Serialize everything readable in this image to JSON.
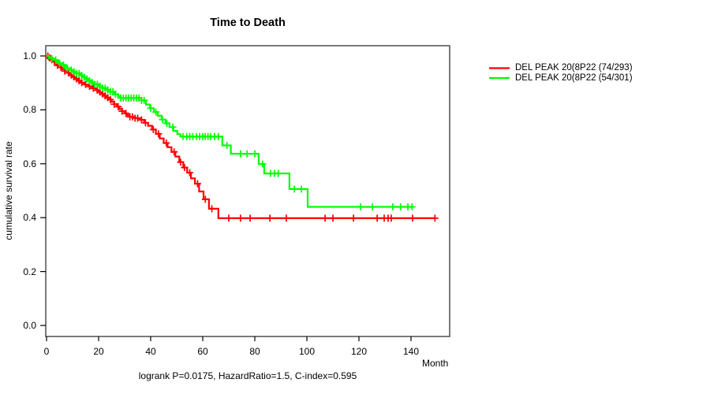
{
  "title": "Time to Death",
  "axes": {
    "x": {
      "label": "Month",
      "tick_labels": [
        "0",
        "20",
        "40",
        "60",
        "80",
        "100",
        "120",
        "140"
      ],
      "tick_values": [
        0,
        20,
        40,
        60,
        80,
        100,
        120,
        140
      ],
      "range": [
        0,
        155
      ]
    },
    "y": {
      "label": "cumulative survival rate",
      "tick_labels": [
        "0.0",
        "0.2",
        "0.4",
        "0.6",
        "0.8",
        "1.0"
      ],
      "tick_values": [
        0,
        0.2,
        0.4,
        0.6,
        0.8,
        1.0
      ],
      "range": [
        0,
        1.0
      ]
    }
  },
  "legend": {
    "items": [
      {
        "label": "DEL PEAK 20(8P22 (74/293)",
        "color": "#ff0000"
      },
      {
        "label": "DEL PEAK 20(8P22 (54/301)",
        "color": "#00ff00"
      }
    ]
  },
  "footer": "logrank P=0.0175, HazardRatio=1.5, C-index=0.595",
  "colors": {
    "series1": "#ff0000",
    "series2": "#00ff00",
    "box": "#595959",
    "tick": "#000000"
  },
  "chart_data": {
    "type": "line",
    "subtype": "kaplan-meier-step",
    "title": "Time to Death",
    "xlabel": "Month",
    "ylabel": "cumulative survival rate",
    "xlim": [
      0,
      155
    ],
    "ylim": [
      0,
      1.0
    ],
    "grid": false,
    "legend_position": "top-right-outside",
    "annotations": [
      "logrank P=0.0175, HazardRatio=1.5, C-index=0.595"
    ],
    "series": [
      {
        "name": "DEL PEAK 20(8P22 (74/293)",
        "events_ratio": "74/293",
        "color": "#ff0000",
        "end_month": 149.4,
        "steps": [
          [
            0,
            1.0
          ],
          [
            0.8,
            0.993
          ],
          [
            1.6,
            0.986
          ],
          [
            2.4,
            0.979
          ],
          [
            3.2,
            0.972
          ],
          [
            4,
            0.965
          ],
          [
            5,
            0.958
          ],
          [
            6,
            0.951
          ],
          [
            7,
            0.944
          ],
          [
            8,
            0.937
          ],
          [
            9,
            0.929
          ],
          [
            10,
            0.922
          ],
          [
            11,
            0.915
          ],
          [
            12,
            0.908
          ],
          [
            13,
            0.901
          ],
          [
            14.5,
            0.894
          ],
          [
            16,
            0.887
          ],
          [
            17.5,
            0.88
          ],
          [
            19,
            0.873
          ],
          [
            20,
            0.866
          ],
          [
            21,
            0.859
          ],
          [
            22,
            0.852
          ],
          [
            23,
            0.845
          ],
          [
            24,
            0.838
          ],
          [
            25,
            0.83
          ],
          [
            26,
            0.821
          ],
          [
            27,
            0.812
          ],
          [
            28,
            0.803
          ],
          [
            29,
            0.795
          ],
          [
            30,
            0.787
          ],
          [
            31,
            0.78
          ],
          [
            32,
            0.774
          ],
          [
            34,
            0.769
          ],
          [
            36,
            0.763
          ],
          [
            37.5,
            0.752
          ],
          [
            39,
            0.741
          ],
          [
            40.5,
            0.727
          ],
          [
            42,
            0.711
          ],
          [
            43.5,
            0.694
          ],
          [
            45,
            0.677
          ],
          [
            46.5,
            0.661
          ],
          [
            48,
            0.644
          ],
          [
            49.5,
            0.627
          ],
          [
            51,
            0.606
          ],
          [
            52.5,
            0.586
          ],
          [
            54,
            0.567
          ],
          [
            55.5,
            0.546
          ],
          [
            57,
            0.526
          ],
          [
            58.6,
            0.497
          ],
          [
            60.3,
            0.468
          ],
          [
            62.4,
            0.433
          ],
          [
            66,
            0.398
          ]
        ],
        "censor_months": [
          0.5,
          1.2,
          2,
          3,
          4.2,
          5.5,
          7,
          8.5,
          9.5,
          10.5,
          11.5,
          12.5,
          13.5,
          15,
          16.5,
          18,
          19.5,
          20.5,
          21.5,
          22.5,
          23.5,
          24.5,
          26,
          27.5,
          29,
          30.5,
          32,
          33,
          34,
          35,
          36.5,
          38,
          41,
          43,
          46,
          49,
          51.5,
          53,
          55,
          58,
          61,
          63.5,
          70,
          74.5,
          78.2,
          85.8,
          92.1,
          107,
          110,
          117.9,
          127,
          129.7,
          131.2,
          132.4,
          140.6,
          149.2
        ]
      },
      {
        "name": "DEL PEAK 20(8P22 (54/301)",
        "events_ratio": "54/301",
        "color": "#00ff00",
        "end_month": 140.6,
        "steps": [
          [
            0,
            1.0
          ],
          [
            1,
            0.995
          ],
          [
            2,
            0.99
          ],
          [
            3,
            0.985
          ],
          [
            4,
            0.979
          ],
          [
            5,
            0.973
          ],
          [
            6,
            0.967
          ],
          [
            7,
            0.961
          ],
          [
            8,
            0.954
          ],
          [
            9,
            0.948
          ],
          [
            10,
            0.941
          ],
          [
            11.5,
            0.935
          ],
          [
            13,
            0.928
          ],
          [
            14,
            0.921
          ],
          [
            15,
            0.915
          ],
          [
            16,
            0.908
          ],
          [
            17,
            0.902
          ],
          [
            18.5,
            0.895
          ],
          [
            20,
            0.888
          ],
          [
            21.5,
            0.881
          ],
          [
            23,
            0.874
          ],
          [
            24.5,
            0.867
          ],
          [
            26,
            0.858
          ],
          [
            27.5,
            0.85
          ],
          [
            28.5,
            0.844
          ],
          [
            36.5,
            0.835
          ],
          [
            38.2,
            0.82
          ],
          [
            39.7,
            0.806
          ],
          [
            41.2,
            0.792
          ],
          [
            42.7,
            0.778
          ],
          [
            44.2,
            0.764
          ],
          [
            45.7,
            0.75
          ],
          [
            47.2,
            0.736
          ],
          [
            48.7,
            0.722
          ],
          [
            50.2,
            0.71
          ],
          [
            51.4,
            0.701
          ],
          [
            67.5,
            0.668
          ],
          [
            70.8,
            0.637
          ],
          [
            81.5,
            0.599
          ],
          [
            83.6,
            0.564
          ],
          [
            93.3,
            0.506
          ],
          [
            100.3,
            0.44
          ]
        ],
        "censor_months": [
          2,
          3.5,
          5,
          6.5,
          8,
          9.5,
          10.5,
          11.5,
          12.5,
          13.5,
          14.5,
          15.5,
          16.5,
          17.5,
          18.5,
          19.5,
          20.5,
          21.5,
          22.5,
          23.5,
          24.5,
          25.5,
          26.5,
          28.5,
          29.5,
          30.5,
          31.5,
          32.5,
          33.5,
          34.5,
          35.5,
          36.5,
          37.5,
          40,
          42,
          44.5,
          46.2,
          48.5,
          52.4,
          53.9,
          55,
          56.2,
          57.6,
          58.8,
          60,
          60.9,
          62,
          63,
          64.5,
          66,
          69.3,
          74.5,
          77,
          80,
          83,
          86,
          87.6,
          89,
          95.2,
          97.9,
          120.6,
          125.2,
          133,
          136,
          138.8,
          140.4
        ]
      }
    ]
  }
}
